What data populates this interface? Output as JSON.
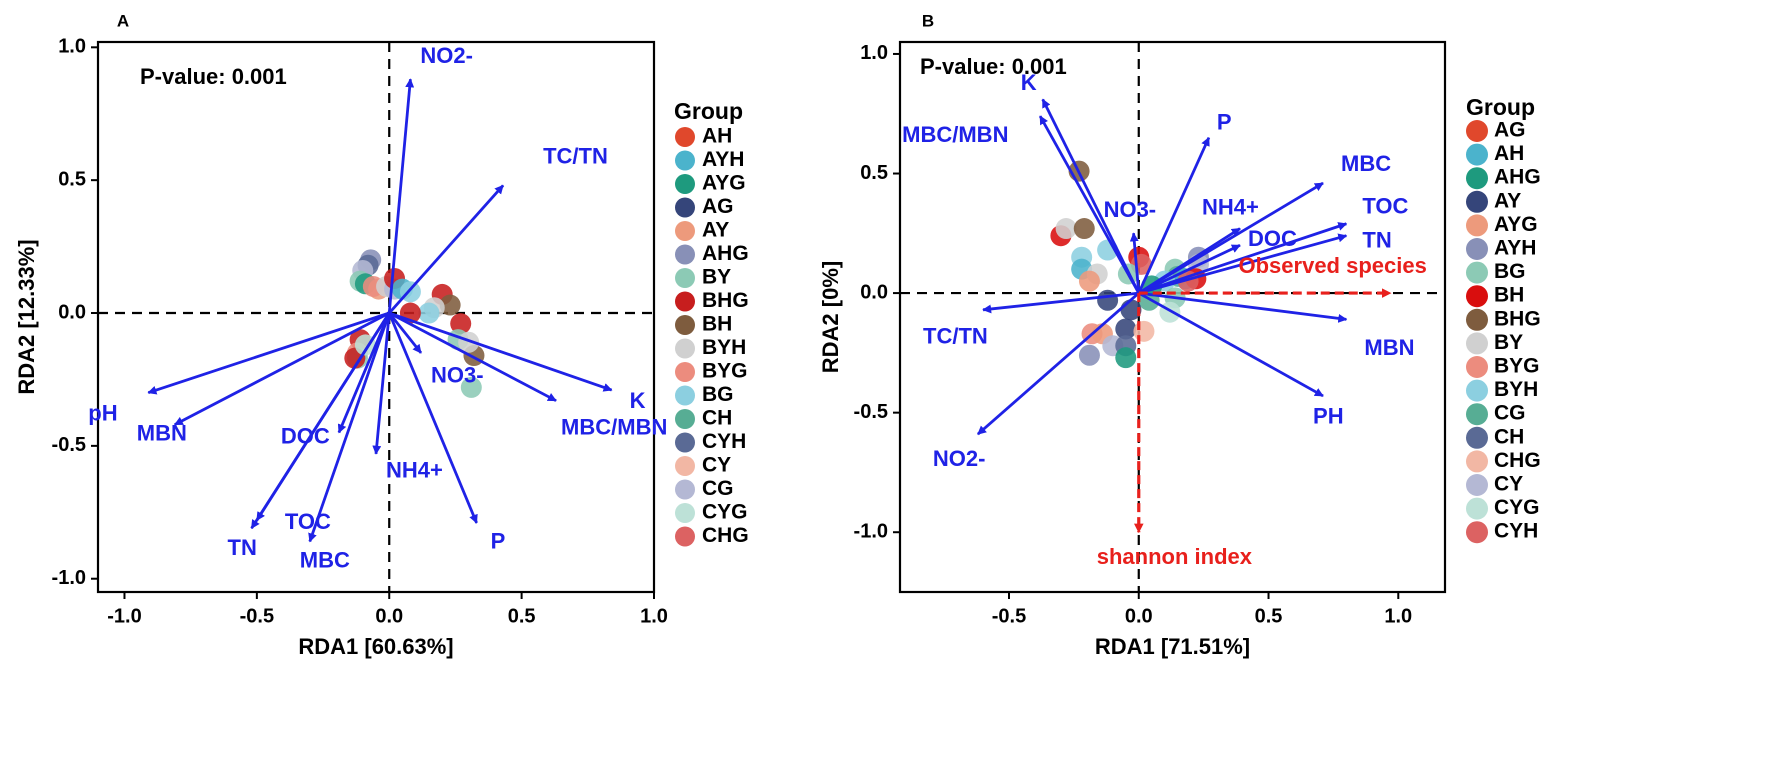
{
  "colors": {
    "arrow_env": "#1f22e6",
    "arrow_diversity": "#e8201c",
    "dash": "#000000",
    "axis": "#000000"
  },
  "chart_data": [
    {
      "type": "scatter",
      "subtype": "rda-biplot",
      "panel": "A",
      "annotation": "P-value: 0.001",
      "xlabel": "RDA1 [60.63%]",
      "ylabel": "RDA2 [12.33%]",
      "xlim": [
        -1.1,
        1.0
      ],
      "ylim": [
        -1.05,
        1.02
      ],
      "xticks": [
        -1.0,
        -0.5,
        0.0,
        0.5,
        1.0
      ],
      "xtick_labels": [
        "-1.0",
        "-0.5",
        "0.0",
        "0.5",
        "1.0"
      ],
      "yticks": [
        -1.0,
        -0.5,
        0.0,
        0.5,
        1.0
      ],
      "ytick_labels": [
        "-1.0",
        "-0.5",
        "0.0",
        "0.5",
        "1.0"
      ],
      "legend_title": "Group",
      "legend_position": "right",
      "groups": [
        {
          "name": "AH",
          "color": "#e0482c"
        },
        {
          "name": "AYH",
          "color": "#4bb3cc"
        },
        {
          "name": "AYG",
          "color": "#1e9a7e"
        },
        {
          "name": "AG",
          "color": "#35457a"
        },
        {
          "name": "AY",
          "color": "#ed9a7c"
        },
        {
          "name": "AHG",
          "color": "#8890b7"
        },
        {
          "name": "BY",
          "color": "#8ccab5"
        },
        {
          "name": "BHG",
          "color": "#c71e1e"
        },
        {
          "name": "BH",
          "color": "#7e5c3e"
        },
        {
          "name": "BYH",
          "color": "#d0d0d0"
        },
        {
          "name": "BYG",
          "color": "#ec8c7e"
        },
        {
          "name": "BG",
          "color": "#8ccfe0"
        },
        {
          "name": "CH",
          "color": "#57ad94"
        },
        {
          "name": "CYH",
          "color": "#5a6a95"
        },
        {
          "name": "CY",
          "color": "#f2b7a4"
        },
        {
          "name": "CG",
          "color": "#b4b8d4"
        },
        {
          "name": "CYG",
          "color": "#bde1d7"
        },
        {
          "name": "CHG",
          "color": "#dc6262"
        }
      ],
      "arrows": [
        {
          "label": "NO2-",
          "x": 0.08,
          "y": 0.88
        },
        {
          "label": "TC/TN",
          "x": 0.43,
          "y": 0.48
        },
        {
          "label": "K",
          "x": 0.84,
          "y": -0.29
        },
        {
          "label": "MBC/MBN",
          "x": 0.63,
          "y": -0.33
        },
        {
          "label": "NO3-",
          "x": 0.12,
          "y": -0.15
        },
        {
          "label": "P",
          "x": 0.33,
          "y": -0.79
        },
        {
          "label": "NH4+",
          "x": -0.05,
          "y": -0.53
        },
        {
          "label": "MBC",
          "x": -0.3,
          "y": -0.86
        },
        {
          "label": "TOC",
          "x": -0.5,
          "y": -0.78
        },
        {
          "label": "TN",
          "x": -0.52,
          "y": -0.81
        },
        {
          "label": "DOC",
          "x": -0.19,
          "y": -0.45
        },
        {
          "label": "MBN",
          "x": -0.81,
          "y": -0.42
        },
        {
          "label": "pH",
          "x": -0.91,
          "y": -0.3
        }
      ],
      "points": [
        {
          "group": "AHG",
          "x": -0.07,
          "y": 0.2
        },
        {
          "group": "CYH",
          "x": -0.08,
          "y": 0.18
        },
        {
          "group": "CG",
          "x": -0.1,
          "y": 0.16
        },
        {
          "group": "BY",
          "x": -0.11,
          "y": 0.12
        },
        {
          "group": "AYG",
          "x": -0.09,
          "y": 0.11
        },
        {
          "group": "AY",
          "x": -0.04,
          "y": 0.09
        },
        {
          "group": "BYG",
          "x": -0.06,
          "y": 0.1
        },
        {
          "group": "BYH",
          "x": -0.01,
          "y": 0.1
        },
        {
          "group": "CG",
          "x": 0.02,
          "y": 0.09
        },
        {
          "group": "BHG",
          "x": 0.02,
          "y": 0.13
        },
        {
          "group": "AYH",
          "x": 0.05,
          "y": 0.09
        },
        {
          "group": "BG",
          "x": 0.08,
          "y": 0.08
        },
        {
          "group": "BHG",
          "x": 0.2,
          "y": 0.07
        },
        {
          "group": "BH",
          "x": 0.23,
          "y": 0.03
        },
        {
          "group": "BYH",
          "x": 0.17,
          "y": 0.02
        },
        {
          "group": "BG",
          "x": 0.15,
          "y": 0.0
        },
        {
          "group": "BHG",
          "x": 0.08,
          "y": 0.0
        },
        {
          "group": "BHG",
          "x": 0.27,
          "y": -0.04
        },
        {
          "group": "BY",
          "x": 0.26,
          "y": -0.1
        },
        {
          "group": "BH",
          "x": 0.32,
          "y": -0.16
        },
        {
          "group": "BYH",
          "x": 0.3,
          "y": -0.11
        },
        {
          "group": "BY",
          "x": 0.31,
          "y": -0.28
        },
        {
          "group": "BHG",
          "x": -0.11,
          "y": -0.1
        },
        {
          "group": "BYG",
          "x": -0.12,
          "y": -0.15
        },
        {
          "group": "BY",
          "x": -0.12,
          "y": -0.17
        },
        {
          "group": "BHG",
          "x": -0.13,
          "y": -0.17
        },
        {
          "group": "CYG",
          "x": -0.09,
          "y": -0.12
        }
      ]
    },
    {
      "type": "scatter",
      "subtype": "rda-biplot",
      "panel": "B",
      "annotation": "P-value: 0.001",
      "xlabel": "RDA1 [71.51%]",
      "ylabel": "RDA2 [0%]",
      "xlim": [
        -0.92,
        1.18
      ],
      "ylim": [
        -1.25,
        1.05
      ],
      "xticks": [
        -0.5,
        0.0,
        0.5,
        1.0
      ],
      "xtick_labels": [
        "-0.5",
        "0.0",
        "0.5",
        "1.0"
      ],
      "yticks": [
        -1.0,
        -0.5,
        0.0,
        0.5,
        1.0
      ],
      "ytick_labels": [
        "-1.0",
        "-0.5",
        "0.0",
        "0.5",
        "1.0"
      ],
      "legend_title": "Group",
      "legend_position": "right",
      "groups": [
        {
          "name": "AG",
          "color": "#e0482c"
        },
        {
          "name": "AH",
          "color": "#4bb3cc"
        },
        {
          "name": "AHG",
          "color": "#1e9a7e"
        },
        {
          "name": "AY",
          "color": "#35457a"
        },
        {
          "name": "AYG",
          "color": "#ed9a7c"
        },
        {
          "name": "AYH",
          "color": "#8890b7"
        },
        {
          "name": "BG",
          "color": "#8ccab5"
        },
        {
          "name": "BH",
          "color": "#d90e0e"
        },
        {
          "name": "BHG",
          "color": "#7e5c3e"
        },
        {
          "name": "BY",
          "color": "#d0d0d0"
        },
        {
          "name": "BYG",
          "color": "#ec8c7e"
        },
        {
          "name": "BYH",
          "color": "#8ccfe0"
        },
        {
          "name": "CG",
          "color": "#57ad94"
        },
        {
          "name": "CH",
          "color": "#5a6a95"
        },
        {
          "name": "CHG",
          "color": "#f2b7a4"
        },
        {
          "name": "CY",
          "color": "#b4b8d4"
        },
        {
          "name": "CYG",
          "color": "#bde1d7"
        },
        {
          "name": "CYH",
          "color": "#dc6262"
        }
      ],
      "arrows": [
        {
          "label": "K",
          "x": -0.37,
          "y": 0.81,
          "kind": "env"
        },
        {
          "label": "MBC/MBN",
          "x": -0.38,
          "y": 0.74,
          "kind": "env"
        },
        {
          "label": "P",
          "x": 0.27,
          "y": 0.65,
          "kind": "env"
        },
        {
          "label": "MBC",
          "x": 0.71,
          "y": 0.46,
          "kind": "env"
        },
        {
          "label": "NH4+",
          "x": 0.39,
          "y": 0.27,
          "kind": "env"
        },
        {
          "label": "DOC",
          "x": 0.39,
          "y": 0.2,
          "kind": "env"
        },
        {
          "label": "TOC",
          "x": 0.8,
          "y": 0.29,
          "kind": "env"
        },
        {
          "label": "TN",
          "x": 0.8,
          "y": 0.24,
          "kind": "env"
        },
        {
          "label": "NO3-",
          "x": -0.02,
          "y": 0.25,
          "kind": "env"
        },
        {
          "label": "MBN",
          "x": 0.8,
          "y": -0.11,
          "kind": "env"
        },
        {
          "label": "PH",
          "x": 0.71,
          "y": -0.43,
          "kind": "env"
        },
        {
          "label": "TC/TN",
          "x": -0.6,
          "y": -0.07,
          "kind": "env"
        },
        {
          "label": "NO2-",
          "x": -0.62,
          "y": -0.59,
          "kind": "env"
        },
        {
          "label": "Observed species",
          "x": 0.97,
          "y": 0.0,
          "kind": "diversity"
        },
        {
          "label": "shannon index",
          "x": 0.0,
          "y": -1.0,
          "kind": "diversity"
        }
      ],
      "points": [
        {
          "group": "BHG",
          "x": -0.23,
          "y": 0.51
        },
        {
          "group": "BH",
          "x": -0.3,
          "y": 0.24
        },
        {
          "group": "BY",
          "x": -0.28,
          "y": 0.27
        },
        {
          "group": "BHG",
          "x": -0.21,
          "y": 0.27
        },
        {
          "group": "BYH",
          "x": -0.22,
          "y": 0.15
        },
        {
          "group": "AH",
          "x": -0.22,
          "y": 0.1
        },
        {
          "group": "BYH",
          "x": -0.12,
          "y": 0.18
        },
        {
          "group": "BY",
          "x": -0.16,
          "y": 0.08
        },
        {
          "group": "AYG",
          "x": -0.19,
          "y": 0.05
        },
        {
          "group": "BH",
          "x": 0.0,
          "y": 0.15
        },
        {
          "group": "CYH",
          "x": 0.01,
          "y": 0.12
        },
        {
          "group": "BG",
          "x": -0.04,
          "y": 0.08
        },
        {
          "group": "AY",
          "x": -0.12,
          "y": -0.03
        },
        {
          "group": "CG",
          "x": 0.04,
          "y": -0.03
        },
        {
          "group": "BYG",
          "x": -0.18,
          "y": -0.17
        },
        {
          "group": "AYG",
          "x": -0.14,
          "y": -0.17
        },
        {
          "group": "AYH",
          "x": -0.19,
          "y": -0.26
        },
        {
          "group": "CY",
          "x": -0.1,
          "y": -0.22
        },
        {
          "group": "AY",
          "x": -0.05,
          "y": -0.15
        },
        {
          "group": "CH",
          "x": -0.05,
          "y": -0.22
        },
        {
          "group": "AHG",
          "x": -0.05,
          "y": -0.27
        },
        {
          "group": "CHG",
          "x": 0.02,
          "y": -0.16
        },
        {
          "group": "AY",
          "x": -0.03,
          "y": -0.07
        },
        {
          "group": "BG",
          "x": 0.14,
          "y": 0.1
        },
        {
          "group": "CG",
          "x": 0.15,
          "y": 0.07
        },
        {
          "group": "AH",
          "x": 0.18,
          "y": 0.06
        },
        {
          "group": "BYH",
          "x": 0.1,
          "y": 0.05
        },
        {
          "group": "AYH",
          "x": 0.23,
          "y": 0.15
        },
        {
          "group": "CY",
          "x": 0.23,
          "y": 0.12
        },
        {
          "group": "BH",
          "x": 0.22,
          "y": 0.06
        },
        {
          "group": "CYH",
          "x": 0.19,
          "y": 0.05
        },
        {
          "group": "BG",
          "x": 0.14,
          "y": -0.02
        },
        {
          "group": "CYG",
          "x": 0.12,
          "y": -0.08
        },
        {
          "group": "AHG",
          "x": 0.05,
          "y": 0.03
        }
      ]
    }
  ]
}
